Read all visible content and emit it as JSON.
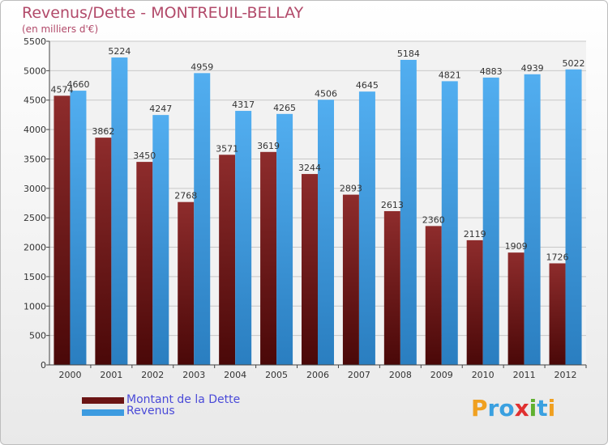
{
  "header": {
    "title": "Revenus/Dette - MONTREUIL-BELLAY",
    "subtitle": "(en milliers d'€)"
  },
  "chart_data": {
    "type": "bar",
    "categories": [
      "2000",
      "2001",
      "2002",
      "2003",
      "2004",
      "2005",
      "2006",
      "2007",
      "2008",
      "2009",
      "2010",
      "2011",
      "2012"
    ],
    "series": [
      {
        "name": "Montant de la Dette",
        "values": [
          4574,
          3862,
          3450,
          2768,
          3571,
          3619,
          3244,
          2893,
          2613,
          2360,
          2119,
          1909,
          1726
        ],
        "color": "#7a1e1e"
      },
      {
        "name": "Revenus",
        "values": [
          4660,
          5224,
          4247,
          4959,
          4317,
          4265,
          4506,
          4645,
          5184,
          4821,
          4883,
          4939,
          5022
        ],
        "color": "#3d9be0"
      }
    ],
    "ylim": [
      0,
      5500
    ],
    "yticks": [
      0,
      500,
      1000,
      1500,
      2000,
      2500,
      3000,
      3500,
      4000,
      4500,
      5000,
      5500
    ],
    "grid": true,
    "legend_position": "bottom-left"
  },
  "logo": {
    "letters": [
      "P",
      "r",
      "o",
      "x",
      "i",
      "t",
      "i"
    ],
    "colors": [
      "#f0a020",
      "#3aa0e0",
      "#3aa0e0",
      "#e03030",
      "#60b030",
      "#3aa0e0",
      "#f0a020"
    ]
  }
}
